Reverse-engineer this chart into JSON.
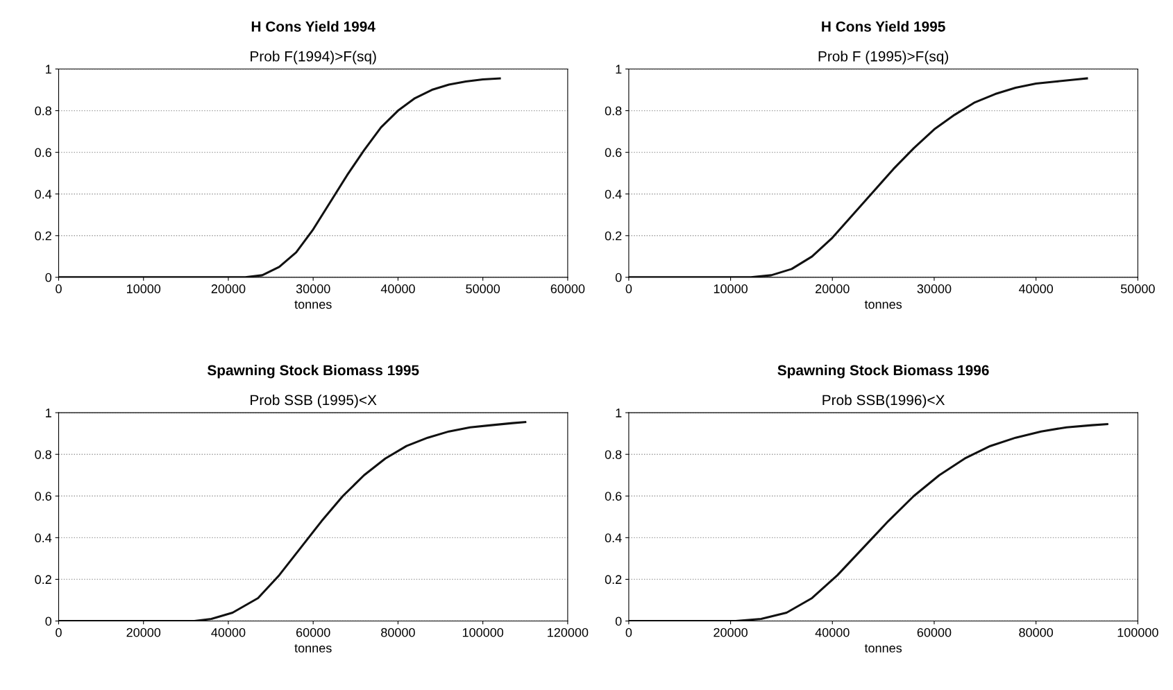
{
  "chart_data": [
    {
      "type": "line",
      "title": "H Cons Yield 1994",
      "subtitle": "Prob F(1994)>F(sq)",
      "xlabel": "tonnes",
      "xlim": [
        0,
        60000
      ],
      "xticks": [
        0,
        10000,
        20000,
        30000,
        40000,
        50000,
        60000
      ],
      "ylim": [
        0,
        1
      ],
      "yticks": [
        0,
        0.2,
        0.4,
        0.6,
        0.8,
        1
      ],
      "grid": "y",
      "legend": false,
      "marker": "none",
      "line_style": "solid",
      "series": [
        {
          "color": "#111111",
          "x": [
            0,
            10000,
            20000,
            22000,
            24000,
            26000,
            28000,
            30000,
            32000,
            34000,
            36000,
            38000,
            40000,
            42000,
            44000,
            46000,
            48000,
            50000,
            52000
          ],
          "values": [
            0,
            0,
            0,
            0,
            0.01,
            0.05,
            0.12,
            0.23,
            0.36,
            0.49,
            0.61,
            0.72,
            0.8,
            0.86,
            0.9,
            0.925,
            0.94,
            0.95,
            0.955
          ]
        }
      ]
    },
    {
      "type": "line",
      "title": "H Cons Yield 1995",
      "subtitle": "Prob F (1995)>F(sq)",
      "xlabel": "tonnes",
      "xlim": [
        0,
        50000
      ],
      "xticks": [
        0,
        10000,
        20000,
        30000,
        40000,
        50000
      ],
      "ylim": [
        0,
        1
      ],
      "yticks": [
        0,
        0.2,
        0.4,
        0.6,
        0.8,
        1
      ],
      "grid": "y",
      "legend": false,
      "marker": "none",
      "line_style": "solid",
      "series": [
        {
          "color": "#111111",
          "x": [
            0,
            10000,
            12000,
            14000,
            16000,
            18000,
            20000,
            22000,
            24000,
            26000,
            28000,
            30000,
            32000,
            34000,
            36000,
            38000,
            40000,
            42000,
            44000,
            45000
          ],
          "values": [
            0,
            0,
            0,
            0.01,
            0.04,
            0.1,
            0.19,
            0.3,
            0.41,
            0.52,
            0.62,
            0.71,
            0.78,
            0.84,
            0.88,
            0.91,
            0.93,
            0.94,
            0.95,
            0.955
          ]
        }
      ]
    },
    {
      "type": "line",
      "title": "Spawning Stock Biomass 1995",
      "subtitle": "Prob SSB (1995)<X",
      "xlabel": "tonnes",
      "xlim": [
        0,
        120000
      ],
      "xticks": [
        0,
        20000,
        40000,
        60000,
        80000,
        100000,
        120000
      ],
      "ylim": [
        0,
        1
      ],
      "yticks": [
        0,
        0.2,
        0.4,
        0.6,
        0.8,
        1
      ],
      "grid": "y",
      "legend": false,
      "marker": "none",
      "line_style": "solid",
      "series": [
        {
          "color": "#111111",
          "x": [
            0,
            20000,
            32000,
            36000,
            41000,
            47000,
            52000,
            57000,
            62000,
            67000,
            72000,
            77000,
            82000,
            87000,
            92000,
            97000,
            102000,
            107000,
            110000
          ],
          "values": [
            0,
            0,
            0,
            0.01,
            0.04,
            0.11,
            0.22,
            0.35,
            0.48,
            0.6,
            0.7,
            0.78,
            0.84,
            0.88,
            0.91,
            0.93,
            0.94,
            0.95,
            0.955
          ]
        }
      ]
    },
    {
      "type": "line",
      "title": "Spawning Stock Biomass 1996",
      "subtitle": "Prob SSB(1996)<X",
      "xlabel": "tonnes",
      "xlim": [
        0,
        100000
      ],
      "xticks": [
        0,
        20000,
        40000,
        60000,
        80000,
        100000
      ],
      "ylim": [
        0,
        1
      ],
      "yticks": [
        0,
        0.2,
        0.4,
        0.6,
        0.8,
        1
      ],
      "grid": "y",
      "legend": false,
      "marker": "none",
      "line_style": "solid",
      "series": [
        {
          "color": "#111111",
          "x": [
            0,
            20000,
            21000,
            26000,
            31000,
            36000,
            41000,
            46000,
            51000,
            56000,
            61000,
            66000,
            71000,
            76000,
            81000,
            86000,
            91000,
            94000
          ],
          "values": [
            0,
            0,
            0,
            0.01,
            0.04,
            0.11,
            0.22,
            0.35,
            0.48,
            0.6,
            0.7,
            0.78,
            0.84,
            0.88,
            0.91,
            0.93,
            0.94,
            0.945
          ]
        }
      ]
    }
  ]
}
